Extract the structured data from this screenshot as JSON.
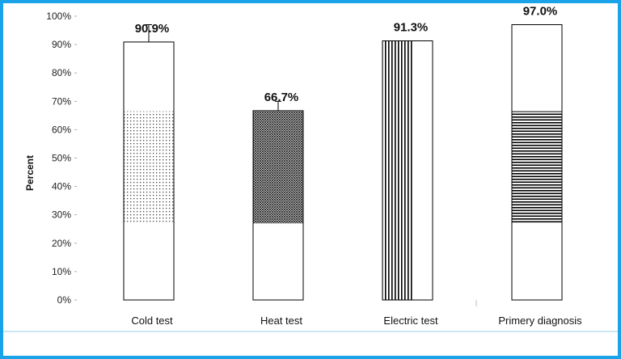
{
  "chart_data": {
    "type": "bar",
    "title": "",
    "xlabel": "",
    "ylabel": "Percent",
    "ylim": [
      0,
      100
    ],
    "yticks": [
      "0%",
      "10%",
      "20%",
      "30%",
      "40%",
      "50%",
      "60%",
      "70%",
      "80%",
      "90%",
      "100%"
    ],
    "grid": false,
    "legend": "none",
    "categories": [
      "Cold test",
      "Heat test",
      "Electric test",
      "Primery diagnosis"
    ],
    "values": [
      90.9,
      66.7,
      91.3,
      97.0
    ],
    "data_labels": [
      "90.9%",
      "66.7%",
      "91.3%",
      "97.0%"
    ],
    "error_bar_top": [
      97,
      70,
      null,
      null
    ],
    "patterns": [
      "dots",
      "crosshatch",
      "vertical-lines",
      "horizontal-lines"
    ],
    "pattern_bands": [
      [
        27,
        66.5
      ],
      [
        27,
        66.5
      ],
      [
        0,
        91.3
      ],
      [
        27,
        66.5
      ]
    ],
    "bar_fill": "#ffffff",
    "bar_stroke": "#000000"
  }
}
